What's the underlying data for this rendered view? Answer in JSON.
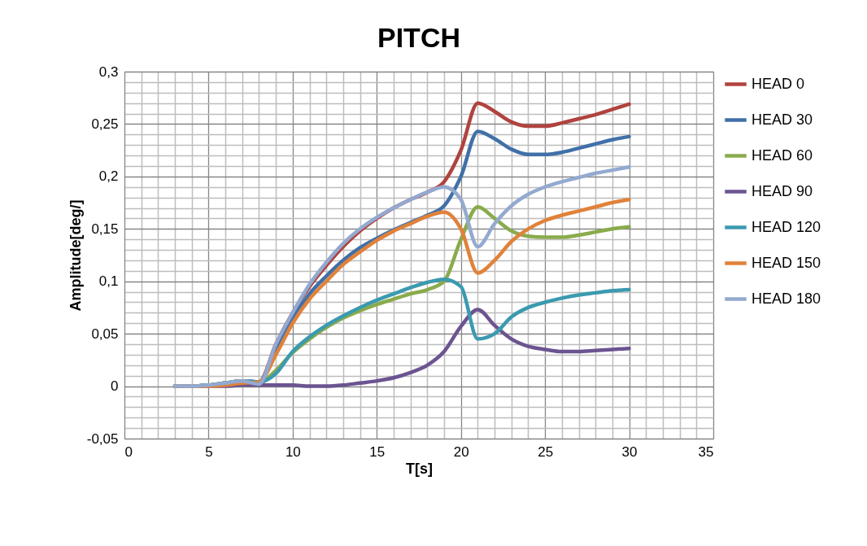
{
  "chart_data": {
    "type": "line",
    "title": "PITCH",
    "xlabel": "T[s]",
    "ylabel": "Amplitude[deg/]",
    "x": [
      3,
      4,
      5,
      6,
      7,
      8,
      9,
      10,
      11,
      12,
      13,
      14,
      15,
      16,
      17,
      18,
      19,
      20,
      21,
      22,
      23,
      24,
      25,
      26,
      27,
      28,
      29,
      30
    ],
    "xlim": [
      0,
      35
    ],
    "xticks": [
      0,
      {
        "value": 1,
        "label": null
      },
      {
        "value": 2,
        "label": null
      },
      {
        "value": 3,
        "label": null
      },
      {
        "value": 4,
        "label": null
      },
      5,
      {
        "value": 6,
        "label": null
      },
      {
        "value": 7,
        "label": null
      },
      {
        "value": 8,
        "label": null
      },
      {
        "value": 9,
        "label": null
      },
      10,
      {
        "value": 11,
        "label": null
      },
      {
        "value": 12,
        "label": null
      },
      {
        "value": 13,
        "label": null
      },
      {
        "value": 14,
        "label": null
      },
      15,
      {
        "value": 16,
        "label": null
      },
      {
        "value": 17,
        "label": null
      },
      {
        "value": 18,
        "label": null
      },
      {
        "value": 19,
        "label": null
      },
      20,
      {
        "value": 21,
        "label": null
      },
      {
        "value": 22,
        "label": null
      },
      {
        "value": 23,
        "label": null
      },
      {
        "value": 24,
        "label": null
      },
      25,
      {
        "value": 26,
        "label": null
      },
      {
        "value": 27,
        "label": null
      },
      {
        "value": 28,
        "label": null
      },
      {
        "value": 29,
        "label": null
      },
      30,
      {
        "value": 31,
        "label": null
      },
      {
        "value": 32,
        "label": null
      },
      {
        "value": 33,
        "label": null
      },
      {
        "value": 34,
        "label": null
      },
      35
    ],
    "ylim": [
      -0.05,
      0.3
    ],
    "yticks": [
      {
        "value": -0.05,
        "label": "-0,05"
      },
      {
        "value": -0.04,
        "label": null
      },
      {
        "value": -0.03,
        "label": null
      },
      {
        "value": -0.02,
        "label": null
      },
      {
        "value": -0.01,
        "label": null
      },
      0,
      {
        "value": 0.01,
        "label": null
      },
      {
        "value": 0.02,
        "label": null
      },
      {
        "value": 0.03,
        "label": null
      },
      {
        "value": 0.04,
        "label": null
      },
      {
        "value": 0.05,
        "label": "0,05"
      },
      {
        "value": 0.06,
        "label": null
      },
      {
        "value": 0.07,
        "label": null
      },
      {
        "value": 0.08,
        "label": null
      },
      {
        "value": 0.09,
        "label": null
      },
      {
        "value": 0.1,
        "label": "0,1"
      },
      {
        "value": 0.11,
        "label": null
      },
      {
        "value": 0.12,
        "label": null
      },
      {
        "value": 0.13,
        "label": null
      },
      {
        "value": 0.14,
        "label": null
      },
      {
        "value": 0.15,
        "label": "0,15"
      },
      {
        "value": 0.16,
        "label": null
      },
      {
        "value": 0.17,
        "label": null
      },
      {
        "value": 0.18,
        "label": null
      },
      {
        "value": 0.19,
        "label": null
      },
      {
        "value": 0.2,
        "label": "0,2"
      },
      {
        "value": 0.21,
        "label": null
      },
      {
        "value": 0.22,
        "label": null
      },
      {
        "value": 0.23,
        "label": null
      },
      {
        "value": 0.24,
        "label": null
      },
      {
        "value": 0.25,
        "label": "0,25"
      },
      {
        "value": 0.26,
        "label": null
      },
      {
        "value": 0.27,
        "label": null
      },
      {
        "value": 0.28,
        "label": null
      },
      {
        "value": 0.29,
        "label": null
      },
      {
        "value": 0.3,
        "label": "0,3"
      }
    ],
    "grid": true,
    "legend": "right",
    "line_style": "solid",
    "series": [
      {
        "name": "HEAD 0",
        "color": "#b0433f",
        "values": [
          0,
          0,
          0.001,
          0.003,
          0.005,
          0.004,
          0.04,
          0.07,
          0.095,
          0.115,
          0.133,
          0.148,
          0.16,
          0.17,
          0.178,
          0.185,
          0.195,
          0.225,
          0.27,
          0.262,
          0.252,
          0.248,
          0.248,
          0.251,
          0.255,
          0.259,
          0.264,
          0.269
        ]
      },
      {
        "name": "HEAD 30",
        "color": "#4170a8",
        "values": [
          0,
          0,
          0.001,
          0.003,
          0.005,
          0.004,
          0.035,
          0.065,
          0.088,
          0.105,
          0.12,
          0.132,
          0.141,
          0.149,
          0.156,
          0.163,
          0.172,
          0.2,
          0.243,
          0.236,
          0.226,
          0.221,
          0.221,
          0.223,
          0.227,
          0.231,
          0.235,
          0.238
        ]
      },
      {
        "name": "HEAD 60",
        "color": "#8aab4c",
        "values": [
          0,
          0,
          0.001,
          0.003,
          0.005,
          0.003,
          0.015,
          0.032,
          0.045,
          0.056,
          0.065,
          0.072,
          0.078,
          0.083,
          0.088,
          0.092,
          0.1,
          0.14,
          0.171,
          0.16,
          0.148,
          0.143,
          0.142,
          0.142,
          0.144,
          0.147,
          0.15,
          0.152
        ]
      },
      {
        "name": "HEAD 90",
        "color": "#6b5490",
        "values": [
          0,
          0,
          0,
          0,
          0.001,
          0.001,
          0.001,
          0.001,
          0,
          0,
          0.001,
          0.003,
          0.005,
          0.008,
          0.013,
          0.02,
          0.033,
          0.057,
          0.073,
          0.058,
          0.045,
          0.038,
          0.035,
          0.033,
          0.033,
          0.034,
          0.035,
          0.036
        ]
      },
      {
        "name": "HEAD 120",
        "color": "#3b9ab0",
        "values": [
          0,
          0,
          0.001,
          0.003,
          0.005,
          0.004,
          0.012,
          0.033,
          0.047,
          0.058,
          0.067,
          0.075,
          0.082,
          0.088,
          0.094,
          0.099,
          0.102,
          0.095,
          0.045,
          0.05,
          0.066,
          0.075,
          0.08,
          0.084,
          0.087,
          0.089,
          0.091,
          0.092
        ]
      },
      {
        "name": "HEAD 150",
        "color": "#e0823a",
        "values": [
          0,
          0,
          0,
          0.001,
          0.003,
          0.004,
          0.03,
          0.06,
          0.083,
          0.1,
          0.116,
          0.128,
          0.139,
          0.148,
          0.155,
          0.162,
          0.166,
          0.15,
          0.108,
          0.12,
          0.138,
          0.15,
          0.158,
          0.163,
          0.167,
          0.171,
          0.175,
          0.178
        ]
      },
      {
        "name": "HEAD 180",
        "color": "#93a9d0",
        "values": [
          0,
          0,
          0.001,
          0.003,
          0.005,
          0.002,
          0.04,
          0.07,
          0.097,
          0.118,
          0.136,
          0.15,
          0.161,
          0.17,
          0.178,
          0.185,
          0.19,
          0.178,
          0.133,
          0.155,
          0.172,
          0.183,
          0.19,
          0.195,
          0.199,
          0.203,
          0.206,
          0.209
        ]
      }
    ]
  }
}
